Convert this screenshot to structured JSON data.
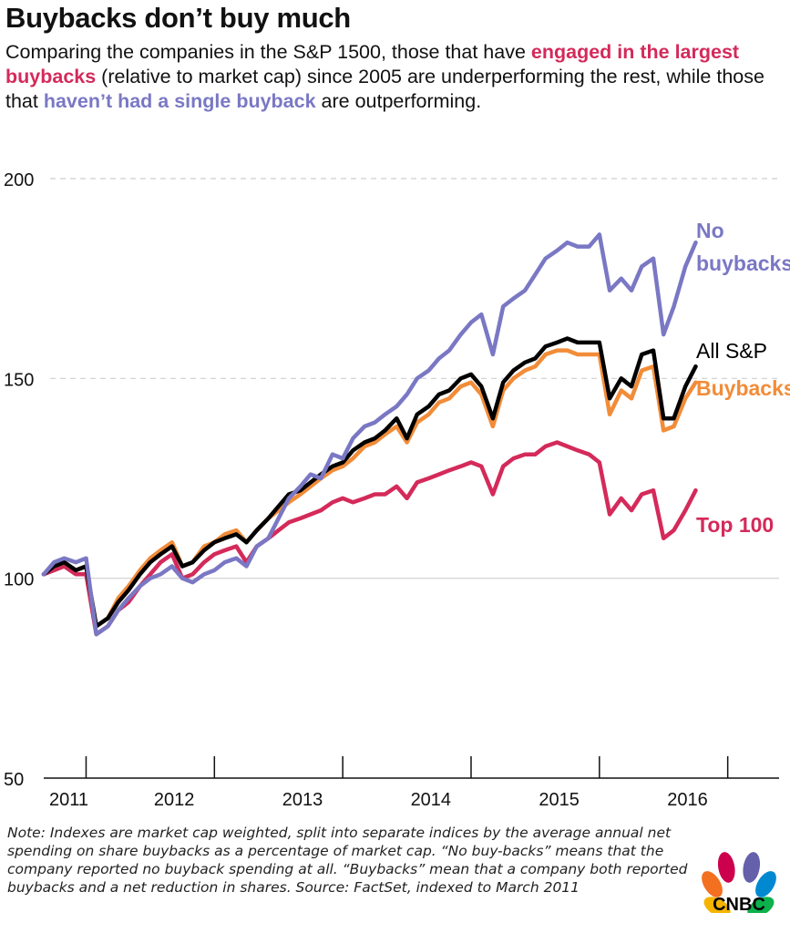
{
  "header": {
    "title": "Buybacks don’t buy much",
    "subtitle_parts": {
      "p1": "Comparing the companies in the S&P 1500, those that have ",
      "h1": "engaged in the largest buybacks",
      "p2": " (relative to market cap) since 2005 are underperforming the rest, while those that ",
      "h2": "haven’t had a single buyback",
      "p3": " are outperforming."
    }
  },
  "note": "Note: Indexes are market cap weighted, split into separate indices by the average annual net spending on share buybacks as a percentage of market cap. “No buy-backs” means that the company reported no buyback spending at all. “Buybacks” mean that a company both reported buybacks and a net reduction in shares. Source: FactSet, indexed to March 2011",
  "logo": {
    "text": "CNBC",
    "icon": "nbc-peacock-icon"
  },
  "colors": {
    "no_buybacks": "#7a78c4",
    "all_sp": "#000000",
    "buybacks": "#f28c38",
    "top100": "#d42a5a"
  },
  "chart_data": {
    "type": "line",
    "title": "Buybacks don’t buy much",
    "xlabel": "",
    "ylabel": "",
    "xlim": [
      2011.17,
      2016.9
    ],
    "ylim": [
      50,
      200
    ],
    "y_ticks": [
      50,
      100,
      150,
      200
    ],
    "y_tick_labels": [
      "50",
      "100",
      "150",
      "200"
    ],
    "x_ticks": [
      2011,
      2012,
      2013,
      2014,
      2015,
      2016
    ],
    "x_tick_labels": [
      "2011",
      "2012",
      "2013",
      "2014",
      "2015",
      "2016"
    ],
    "grid": "horizontal",
    "legend": "direct labels at right end of lines",
    "x": [
      2011.17,
      2011.25,
      2011.33,
      2011.42,
      2011.5,
      2011.58,
      2011.67,
      2011.75,
      2011.83,
      2011.92,
      2012.0,
      2012.08,
      2012.17,
      2012.25,
      2012.33,
      2012.42,
      2012.5,
      2012.58,
      2012.67,
      2012.75,
      2012.83,
      2012.92,
      2013.0,
      2013.08,
      2013.17,
      2013.25,
      2013.33,
      2013.42,
      2013.5,
      2013.58,
      2013.67,
      2013.75,
      2013.83,
      2013.92,
      2014.0,
      2014.08,
      2014.17,
      2014.25,
      2014.33,
      2014.42,
      2014.5,
      2014.58,
      2014.67,
      2014.75,
      2014.83,
      2014.92,
      2015.0,
      2015.08,
      2015.17,
      2015.25,
      2015.33,
      2015.42,
      2015.5,
      2015.58,
      2015.67,
      2015.75,
      2015.83,
      2015.92,
      2016.0,
      2016.08,
      2016.17,
      2016.25
    ],
    "series": [
      {
        "name": "No buybacks",
        "label_lines": [
          "No",
          "buybacks"
        ],
        "color": "#7a78c4",
        "values": [
          101,
          104,
          105,
          104,
          105,
          86,
          88,
          92,
          95,
          98,
          100,
          101,
          103,
          100,
          99,
          101,
          102,
          104,
          105,
          103,
          108,
          110,
          115,
          120,
          123,
          126,
          125,
          131,
          130,
          135,
          138,
          139,
          141,
          143,
          146,
          150,
          152,
          155,
          157,
          161,
          164,
          166,
          156,
          168,
          170,
          172,
          176,
          180,
          182,
          184,
          183,
          183,
          186,
          172,
          175,
          172,
          178,
          180,
          161,
          168,
          178,
          184
        ]
      },
      {
        "name": "All S&P",
        "label_lines": [
          "All S&P"
        ],
        "color": "#000000",
        "values": [
          101,
          103,
          104,
          102,
          103,
          88,
          90,
          94,
          97,
          101,
          104,
          106,
          108,
          103,
          104,
          107,
          109,
          110,
          111,
          109,
          112,
          115,
          118,
          121,
          122,
          124,
          126,
          128,
          129,
          132,
          134,
          135,
          137,
          140,
          135,
          141,
          143,
          146,
          147,
          150,
          151,
          148,
          140,
          149,
          152,
          154,
          155,
          158,
          159,
          160,
          159,
          159,
          159,
          145,
          150,
          148,
          156,
          157,
          140,
          140,
          148,
          153
        ]
      },
      {
        "name": "Buybacks",
        "label_lines": [
          "Buybacks"
        ],
        "color": "#f28c38",
        "values": [
          101,
          103,
          104,
          102,
          103,
          88,
          90,
          95,
          98,
          102,
          105,
          107,
          109,
          103,
          104,
          108,
          109,
          111,
          112,
          109,
          112,
          115,
          117,
          119,
          121,
          123,
          125,
          127,
          128,
          130,
          133,
          134,
          136,
          138,
          134,
          139,
          141,
          144,
          145,
          148,
          149,
          146,
          138,
          147,
          150,
          152,
          153,
          156,
          157,
          157,
          156,
          156,
          156,
          141,
          147,
          145,
          152,
          153,
          137,
          138,
          145,
          149
        ]
      },
      {
        "name": "Top 100",
        "label_lines": [
          "Top 100"
        ],
        "color": "#d42a5a",
        "values": [
          101,
          102,
          103,
          101,
          101,
          86,
          88,
          92,
          94,
          98,
          101,
          104,
          106,
          100,
          101,
          104,
          106,
          107,
          108,
          104,
          108,
          110,
          112,
          114,
          115,
          116,
          117,
          119,
          120,
          119,
          120,
          121,
          121,
          123,
          120,
          124,
          125,
          126,
          127,
          128,
          129,
          128,
          121,
          128,
          130,
          131,
          131,
          133,
          134,
          133,
          132,
          131,
          129,
          116,
          120,
          117,
          121,
          122,
          110,
          112,
          117,
          122
        ]
      }
    ]
  }
}
